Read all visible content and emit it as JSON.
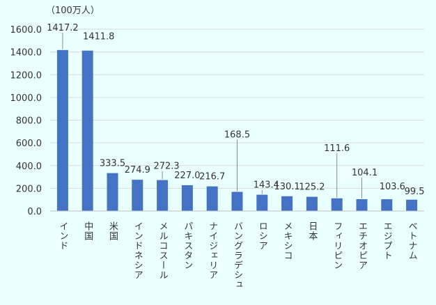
{
  "chart_data": {
    "type": "bar",
    "unit_label": "（100万人）",
    "categories": [
      "インド",
      "中国",
      "米国",
      "インドネシア",
      "メルコスール",
      "パキスタン",
      "ナイジェリア",
      "バングラデシュ",
      "ロシア",
      "メキシコ",
      "日本",
      "フィリピン",
      "エチオピア",
      "エジプト",
      "ベトナム"
    ],
    "values": [
      1417.2,
      1411.8,
      333.5,
      274.9,
      272.3,
      227.0,
      216.7,
      168.5,
      143.4,
      130.1,
      125.2,
      111.6,
      104.1,
      103.6,
      99.5
    ],
    "value_labels": [
      "1417.2",
      "1411.8",
      "333.5",
      "274.9",
      "272.3",
      "227.0",
      "216.7",
      "168.5",
      "143.4",
      "130.1",
      "125.2",
      "111.6",
      "104.1",
      "103.6",
      "99.5"
    ],
    "y_ticks": [
      "0.0",
      "200.0",
      "400.0",
      "600.0",
      "800.0",
      "1000.0",
      "1200.0",
      "1400.0",
      "1600.0"
    ],
    "ylim": [
      0,
      1600
    ],
    "grid": true,
    "colors": {
      "bar": "#4472c4",
      "grid": "#d9d9d9",
      "axis": "#bfbfbf",
      "background": "#eaffff",
      "leader": "#8c8c8c"
    }
  }
}
